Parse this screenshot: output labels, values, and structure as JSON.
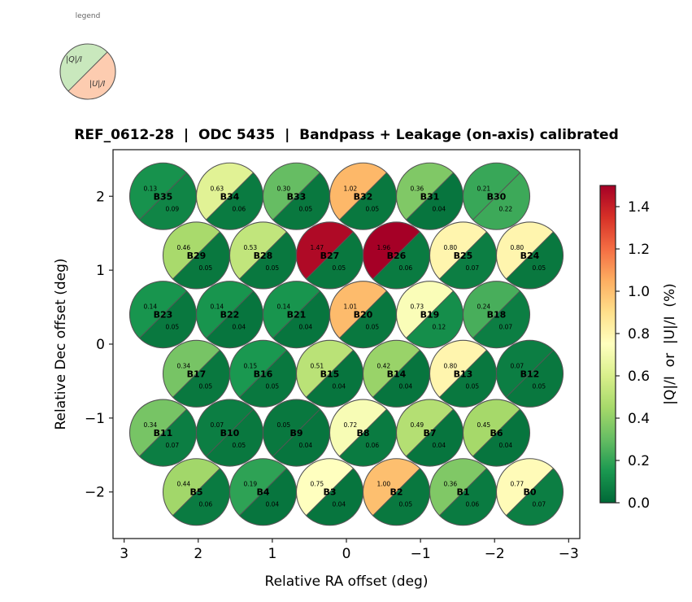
{
  "chart_data": {
    "type": "scatter",
    "title": "REF_0612-28  |  ODC 5435  |  Bandpass + Leakage (on-axis) calibrated",
    "xlabel": "Relative RA offset (deg)",
    "ylabel": "Relative Dec offset (deg)",
    "xlim": [
      3.15,
      -3.15
    ],
    "ylim": [
      -2.63,
      2.63
    ],
    "xticks": [
      3,
      2,
      1,
      0,
      -1,
      -2,
      -3
    ],
    "xtick_labels": [
      "3",
      "2",
      "1",
      "0",
      "−1",
      "−2",
      "−3"
    ],
    "yticks": [
      2,
      1,
      0,
      -1,
      -2
    ],
    "ytick_labels": [
      "2",
      "1",
      "0",
      "−1",
      "−2"
    ],
    "grid": false,
    "colormap": "RdYlGn_r",
    "colorbar": {
      "label": "|Q|/I  or  |U|/I  (%)",
      "range": [
        0.0,
        1.5
      ],
      "ticks": [
        0.0,
        0.2,
        0.4,
        0.6,
        0.8,
        1.0,
        1.2,
        1.4
      ],
      "tick_labels": [
        "0.0",
        "0.2",
        "0.4",
        "0.6",
        "0.8",
        "1.0",
        "1.2",
        "1.4"
      ]
    },
    "legend": {
      "title": "legend",
      "upper_label": "|Q|/I",
      "lower_label": "|U|/I",
      "upper_color": "#c9e8bd",
      "lower_color": "#fdccb0",
      "placement": "top-left"
    },
    "beam_radius_deg": 0.45,
    "beams": [
      {
        "name": "B35",
        "x": 2.475,
        "y": 2.0,
        "q": 0.13,
        "u": 0.09
      },
      {
        "name": "B34",
        "x": 1.575,
        "y": 2.0,
        "q": 0.63,
        "u": 0.06
      },
      {
        "name": "B33",
        "x": 0.675,
        "y": 2.0,
        "q": 0.3,
        "u": 0.05
      },
      {
        "name": "B32",
        "x": -0.225,
        "y": 2.0,
        "q": 1.02,
        "u": 0.05
      },
      {
        "name": "B31",
        "x": -1.125,
        "y": 2.0,
        "q": 0.36,
        "u": 0.04
      },
      {
        "name": "B30",
        "x": -2.025,
        "y": 2.0,
        "q": 0.21,
        "u": 0.22
      },
      {
        "name": "B29",
        "x": 2.025,
        "y": 1.2,
        "q": 0.46,
        "u": 0.05
      },
      {
        "name": "B28",
        "x": 1.125,
        "y": 1.2,
        "q": 0.53,
        "u": 0.05
      },
      {
        "name": "B27",
        "x": 0.225,
        "y": 1.2,
        "q": 1.47,
        "u": 0.05
      },
      {
        "name": "B26",
        "x": -0.675,
        "y": 1.2,
        "q": 1.96,
        "u": 0.06
      },
      {
        "name": "B25",
        "x": -1.575,
        "y": 1.2,
        "q": 0.8,
        "u": 0.07
      },
      {
        "name": "B24",
        "x": -2.475,
        "y": 1.2,
        "q": 0.8,
        "u": 0.05
      },
      {
        "name": "B23",
        "x": 2.475,
        "y": 0.4,
        "q": 0.14,
        "u": 0.05
      },
      {
        "name": "B22",
        "x": 1.575,
        "y": 0.4,
        "q": 0.14,
        "u": 0.04
      },
      {
        "name": "B21",
        "x": 0.675,
        "y": 0.4,
        "q": 0.14,
        "u": 0.04
      },
      {
        "name": "B20",
        "x": -0.225,
        "y": 0.4,
        "q": 1.01,
        "u": 0.05
      },
      {
        "name": "B19",
        "x": -1.125,
        "y": 0.4,
        "q": 0.73,
        "u": 0.12
      },
      {
        "name": "B18",
        "x": -2.025,
        "y": 0.4,
        "q": 0.24,
        "u": 0.07
      },
      {
        "name": "B17",
        "x": 2.025,
        "y": -0.4,
        "q": 0.34,
        "u": 0.05
      },
      {
        "name": "B16",
        "x": 1.125,
        "y": -0.4,
        "q": 0.15,
        "u": 0.05
      },
      {
        "name": "B15",
        "x": 0.225,
        "y": -0.4,
        "q": 0.51,
        "u": 0.04
      },
      {
        "name": "B14",
        "x": -0.675,
        "y": -0.4,
        "q": 0.42,
        "u": 0.04
      },
      {
        "name": "B13",
        "x": -1.575,
        "y": -0.4,
        "q": 0.8,
        "u": 0.05
      },
      {
        "name": "B12",
        "x": -2.475,
        "y": -0.4,
        "q": 0.07,
        "u": 0.05
      },
      {
        "name": "B11",
        "x": 2.475,
        "y": -1.2,
        "q": 0.34,
        "u": 0.07
      },
      {
        "name": "B10",
        "x": 1.575,
        "y": -1.2,
        "q": 0.07,
        "u": 0.05
      },
      {
        "name": "B9",
        "x": 0.675,
        "y": -1.2,
        "q": 0.05,
        "u": 0.04
      },
      {
        "name": "B8",
        "x": -0.225,
        "y": -1.2,
        "q": 0.72,
        "u": 0.06
      },
      {
        "name": "B7",
        "x": -1.125,
        "y": -1.2,
        "q": 0.49,
        "u": 0.04
      },
      {
        "name": "B6",
        "x": -2.025,
        "y": -1.2,
        "q": 0.45,
        "u": 0.04
      },
      {
        "name": "B5",
        "x": 2.025,
        "y": -2.0,
        "q": 0.44,
        "u": 0.06
      },
      {
        "name": "B4",
        "x": 1.125,
        "y": -2.0,
        "q": 0.19,
        "u": 0.04
      },
      {
        "name": "B3",
        "x": 0.225,
        "y": -2.0,
        "q": 0.75,
        "u": 0.04
      },
      {
        "name": "B2",
        "x": -0.675,
        "y": -2.0,
        "q": 1.0,
        "u": 0.05
      },
      {
        "name": "B1",
        "x": -1.575,
        "y": -2.0,
        "q": 0.36,
        "u": 0.06
      },
      {
        "name": "B0",
        "x": -2.475,
        "y": -2.0,
        "q": 0.77,
        "u": 0.07
      }
    ]
  }
}
